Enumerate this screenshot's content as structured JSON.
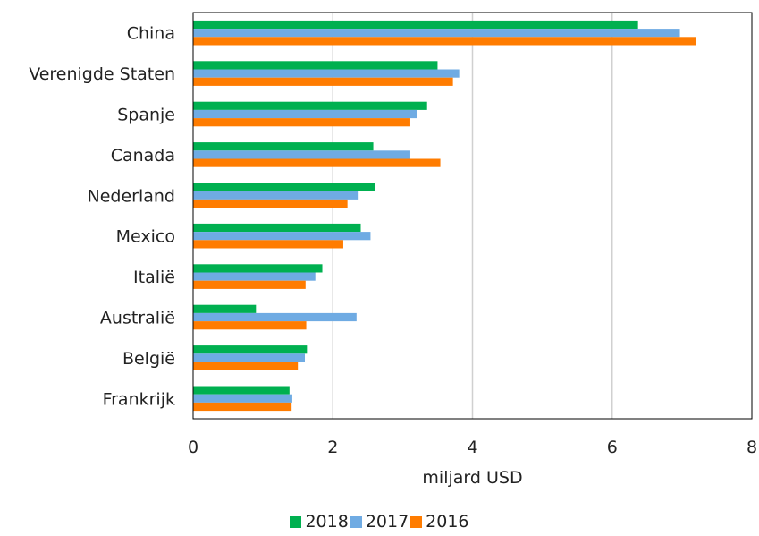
{
  "chart_data": {
    "type": "bar",
    "orientation": "horizontal",
    "categories": [
      "China",
      "Verenigde Staten",
      "Spanje",
      "Canada",
      "Nederland",
      "Mexico",
      "Italië",
      "Australië",
      "België",
      "Frankrijk"
    ],
    "series": [
      {
        "name": "2018",
        "color": "#00b050",
        "values": [
          6.37,
          3.5,
          3.35,
          2.58,
          2.6,
          2.4,
          1.85,
          0.9,
          1.63,
          1.38
        ]
      },
      {
        "name": "2017",
        "color": "#6fabe3",
        "values": [
          6.97,
          3.81,
          3.21,
          3.11,
          2.37,
          2.54,
          1.75,
          2.34,
          1.6,
          1.42
        ]
      },
      {
        "name": "2016",
        "color": "#ff7c00",
        "values": [
          7.2,
          3.72,
          3.11,
          3.54,
          2.21,
          2.15,
          1.61,
          1.62,
          1.5,
          1.41
        ]
      }
    ],
    "xlabel": "miljard USD",
    "xlim": [
      0,
      8
    ],
    "xticks": [
      "0",
      "2",
      "4",
      "6",
      "8"
    ],
    "grid": "vertical",
    "legend": "bottom"
  }
}
